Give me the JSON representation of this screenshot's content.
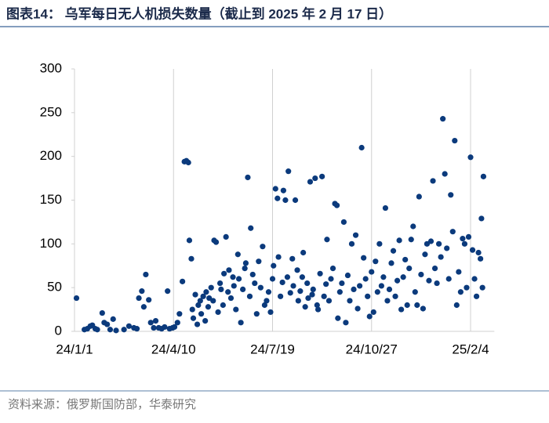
{
  "chart_data": {
    "type": "scatter",
    "title": "图表14：  乌军每日无人机损失数量（截止到 2025 年 2 月 17 日）",
    "source": "资料来源：俄罗斯国防部，华泰研究",
    "color": "#0b3a7c",
    "grid": true,
    "xlim": [
      0,
      424
    ],
    "ylim": [
      0,
      300
    ],
    "xticks": [
      {
        "value": 0,
        "label": "24/1/1"
      },
      {
        "value": 100,
        "label": "24/4/10"
      },
      {
        "value": 200,
        "label": "24/7/19"
      },
      {
        "value": 300,
        "label": "24/10/27"
      },
      {
        "value": 400,
        "label": "25/2/4"
      }
    ],
    "yticks": [
      0,
      50,
      100,
      150,
      200,
      250,
      300
    ],
    "x": [
      2,
      10,
      13,
      16,
      18,
      21,
      23,
      28,
      30,
      33,
      36,
      39,
      42,
      50,
      55,
      60,
      63,
      65,
      68,
      70,
      72,
      75,
      77,
      80,
      82,
      85,
      88,
      91,
      94,
      96,
      99,
      101,
      104,
      106,
      109,
      111,
      113,
      115,
      116,
      118,
      119,
      120,
      122,
      124,
      125,
      127,
      128,
      130,
      132,
      133,
      135,
      136,
      138,
      140,
      141,
      143,
      145,
      147,
      148,
      150,
      151,
      153,
      155,
      156,
      158,
      160,
      161,
      163,
      165,
      166,
      168,
      170,
      172,
      173,
      175,
      177,
      178,
      180,
      182,
      184,
      186,
      188,
      190,
      192,
      194,
      196,
      198,
      200,
      201,
      203,
      205,
      206,
      208,
      210,
      211,
      213,
      215,
      216,
      218,
      220,
      221,
      223,
      225,
      226,
      228,
      230,
      231,
      233,
      235,
      236,
      238,
      240,
      241,
      243,
      245,
      246,
      248,
      250,
      252,
      254,
      255,
      257,
      259,
      261,
      263,
      265,
      266,
      268,
      270,
      272,
      274,
      276,
      278,
      280,
      282,
      284,
      286,
      288,
      290,
      292,
      294,
      296,
      298,
      300,
      302,
      304,
      306,
      308,
      310,
      312,
      314,
      316,
      318,
      320,
      322,
      324,
      326,
      328,
      330,
      332,
      334,
      336,
      338,
      340,
      342,
      344,
      346,
      348,
      350,
      352,
      354,
      356,
      358,
      360,
      362,
      364,
      366,
      368,
      370,
      372,
      374,
      376,
      378,
      380,
      382,
      384,
      386,
      388,
      390,
      392,
      394,
      396,
      398,
      400,
      402,
      404,
      406,
      408,
      410,
      411,
      412,
      413
    ],
    "values": [
      38,
      2,
      3,
      6,
      7,
      3,
      2,
      21,
      10,
      8,
      2,
      14,
      1,
      2,
      6,
      4,
      3,
      38,
      46,
      28,
      65,
      36,
      10,
      4,
      12,
      4,
      3,
      5,
      46,
      3,
      4,
      5,
      10,
      20,
      57,
      194,
      195,
      193,
      104,
      83,
      25,
      15,
      42,
      8,
      30,
      35,
      20,
      40,
      12,
      45,
      28,
      38,
      50,
      35,
      104,
      102,
      22,
      55,
      48,
      30,
      66,
      108,
      45,
      70,
      38,
      62,
      52,
      25,
      88,
      60,
      10,
      48,
      72,
      78,
      176,
      40,
      118,
      65,
      55,
      20,
      80,
      50,
      97,
      30,
      35,
      45,
      22,
      60,
      75,
      163,
      152,
      85,
      40,
      56,
      161,
      150,
      62,
      183,
      44,
      83,
      52,
      150,
      70,
      35,
      46,
      62,
      90,
      28,
      55,
      38,
      171,
      42,
      48,
      175,
      30,
      25,
      66,
      177,
      40,
      54,
      105,
      35,
      60,
      72,
      146,
      144,
      15,
      45,
      55,
      125,
      10,
      64,
      35,
      100,
      48,
      110,
      26,
      52,
      210,
      84,
      60,
      40,
      17,
      68,
      22,
      80,
      45,
      100,
      52,
      62,
      141,
      35,
      48,
      78,
      92,
      40,
      58,
      104,
      25,
      62,
      82,
      30,
      72,
      105,
      120,
      45,
      30,
      154,
      65,
      26,
      88,
      100,
      58,
      103,
      172,
      72,
      55,
      100,
      85,
      243,
      180,
      95,
      60,
      156,
      114,
      218,
      30,
      68,
      45,
      106,
      100,
      50,
      108,
      199,
      93,
      60,
      40,
      90,
      83,
      129,
      50,
      177
    ]
  }
}
